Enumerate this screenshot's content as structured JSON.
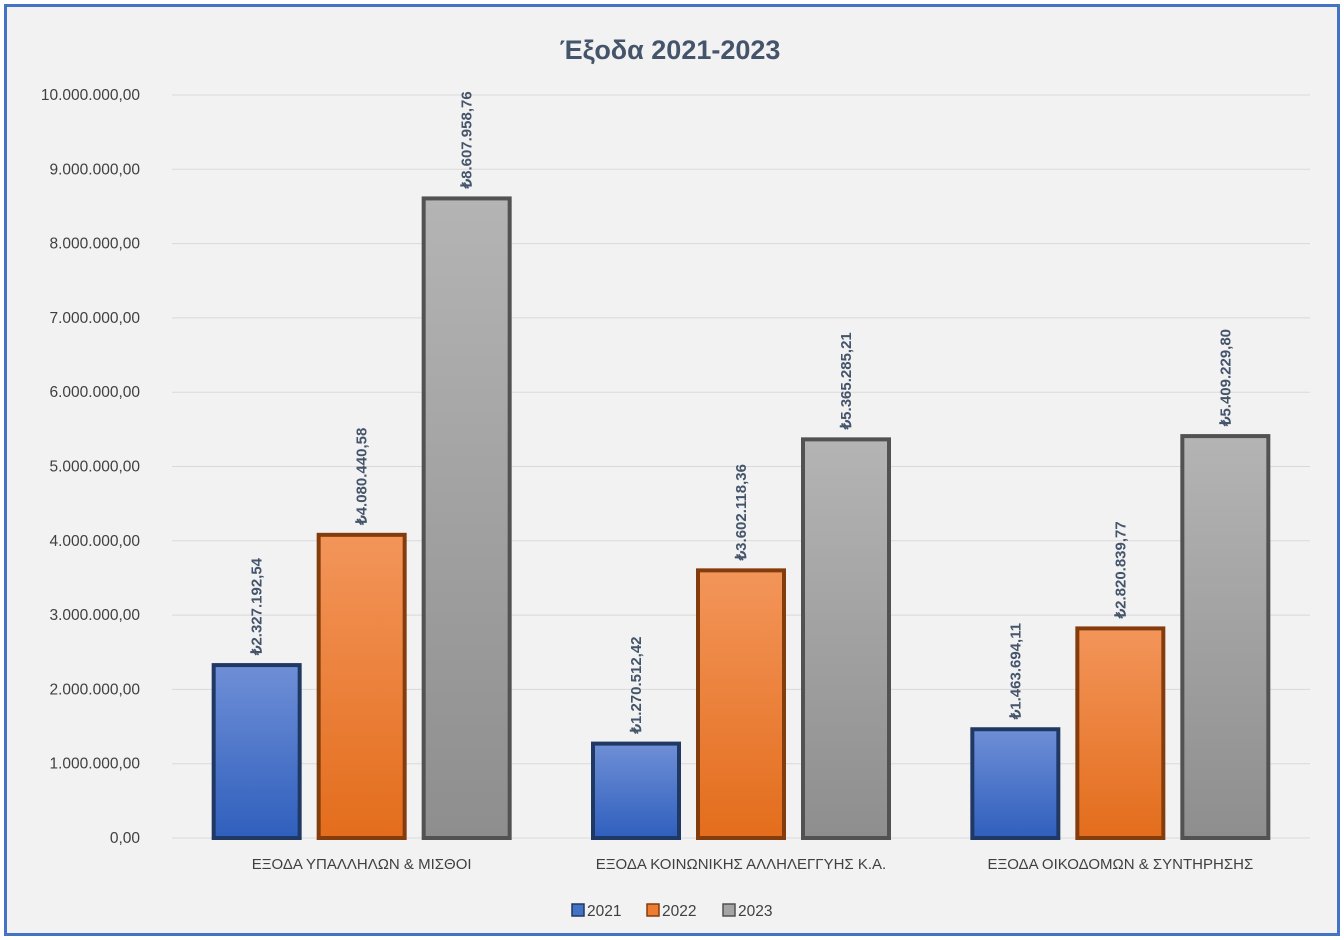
{
  "chart_data": {
    "type": "bar",
    "title": "Έξοδα 2021-2023",
    "categories": [
      "ΕΞΟΔΑ ΥΠΑΛΛΗΛΩΝ & ΜΙΣΘΟΙ",
      "ΕΞΟΔΑ ΚΟΙΝΩΝΙΚΗΣ ΑΛΛΗΛΕΓΓΥΗΣ Κ.Α.",
      "ΕΞΟΔΑ ΟΙΚΟΔΟΜΩΝ & ΣΥΝΤΗΡΗΣΗΣ"
    ],
    "series": [
      {
        "name": "2021",
        "color": "#4472c4",
        "values": [
          2327192.54,
          1270512.42,
          1463694.11
        ],
        "labels": [
          "₺2.327.192,54",
          "₺1.270.512,42",
          "₺1.463.694,11"
        ]
      },
      {
        "name": "2022",
        "color": "#ed7d31",
        "values": [
          4080440.58,
          3602118.36,
          2820839.77
        ],
        "labels": [
          "₺4.080.440,58",
          "₺3.602.118,36",
          "₺2.820.839,77"
        ]
      },
      {
        "name": "2023",
        "color": "#a5a5a5",
        "values": [
          8607958.76,
          5365285.21,
          5409229.8
        ],
        "labels": [
          "₺8.607.958,76",
          "₺5.365.285,21",
          "₺5.409.229,80"
        ]
      }
    ],
    "ylim": [
      0,
      10000000
    ],
    "yticks": [
      0,
      1000000,
      2000000,
      3000000,
      4000000,
      5000000,
      6000000,
      7000000,
      8000000,
      9000000,
      10000000
    ],
    "ytick_labels": [
      "0,00",
      "1.000.000,00",
      "2.000.000,00",
      "3.000.000,00",
      "4.000.000,00",
      "5.000.000,00",
      "6.000.000,00",
      "7.000.000,00",
      "8.000.000,00",
      "9.000.000,00",
      "10.000.000,00"
    ],
    "xlabel": "",
    "ylabel": "",
    "grid": true,
    "legend": "bottom"
  }
}
